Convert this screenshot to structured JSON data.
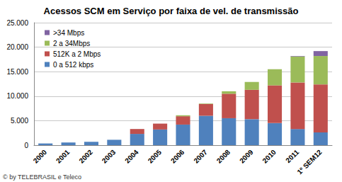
{
  "chart_data": {
    "type": "bar",
    "title": "Acessos SCM em Serviço por faixa de vel. de transmissão",
    "categories": [
      "2000",
      "2001",
      "2002",
      "2003",
      "2004",
      "2005",
      "2006",
      "2007",
      "2008",
      "2009",
      "2010",
      "2011",
      "1º SEM12"
    ],
    "series": [
      {
        "name": "0 a 512 kbps",
        "color": "#4F81BD",
        "values": [
          350,
          550,
          700,
          1100,
          2300,
          3200,
          4200,
          6000,
          5500,
          5300,
          4500,
          3300,
          2600
        ]
      },
      {
        "name": "512K a 2 Mbps",
        "color": "#C0504D",
        "values": [
          0,
          0,
          0,
          0,
          1000,
          1200,
          1700,
          2400,
          5000,
          6000,
          7700,
          9500,
          9800
        ]
      },
      {
        "name": "2 a 34Mbps",
        "color": "#9BBB59",
        "values": [
          0,
          0,
          0,
          0,
          0,
          0,
          200,
          100,
          500,
          1600,
          3300,
          5300,
          5800
        ]
      },
      {
        "name": ">34 Mbps",
        "color": "#8064A2",
        "values": [
          0,
          0,
          0,
          0,
          0,
          0,
          0,
          0,
          0,
          0,
          0,
          100,
          1000
        ]
      }
    ],
    "ylim": [
      0,
      25000
    ],
    "yticks": [
      0,
      {
        "value": 5000,
        "label": "5.000"
      },
      {
        "value": 10000,
        "label": "10.000"
      },
      {
        "value": 15000,
        "label": "15.000"
      },
      {
        "value": 20000,
        "label": "20.000"
      },
      {
        "value": 25000,
        "label": "25.000"
      }
    ],
    "stacked": true,
    "grid": true,
    "legend": "upper left",
    "annotations": [
      "© by TELEBRASIL e Teleco"
    ]
  }
}
